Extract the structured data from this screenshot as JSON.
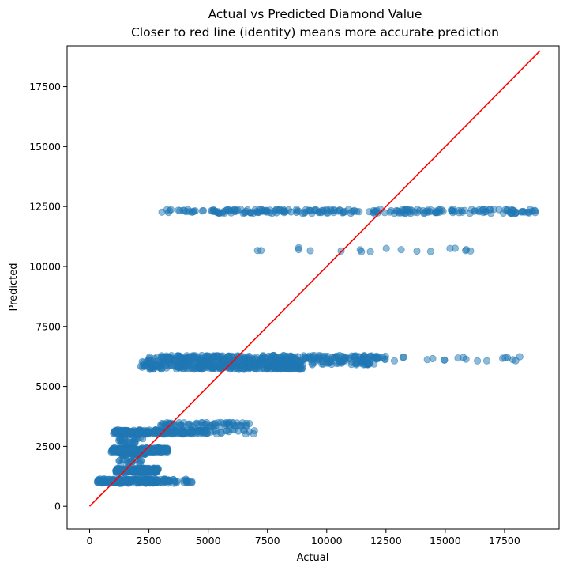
{
  "chart_data": {
    "type": "scatter",
    "title": "Actual vs Predicted Diamond Value",
    "subtitle": "Closer to red line (identity) means more accurate prediction",
    "xlabel": "Actual",
    "ylabel": "Predicted",
    "xlim": [
      -950,
      19800
    ],
    "ylim": [
      -950,
      19200
    ],
    "x_ticks": [
      0,
      2500,
      5000,
      7500,
      10000,
      12500,
      15000,
      17500
    ],
    "y_ticks": [
      0,
      2500,
      5000,
      7500,
      10000,
      12500,
      15000,
      17500
    ],
    "grid": false,
    "point_color": "#1f77b4",
    "point_alpha": 0.5,
    "identity_line": {
      "color": "#ff0000",
      "from": [
        0,
        0
      ],
      "to": [
        19000,
        19000
      ]
    },
    "clusters": [
      {
        "predicted": 1050,
        "actual_range": [
          300,
          3400
        ],
        "density": "dense"
      },
      {
        "predicted": 1050,
        "actual_range": [
          3400,
          4350
        ],
        "density": "sparse"
      },
      {
        "predicted": 1500,
        "actual_range": [
          1100,
          2900
        ],
        "density": "dense"
      },
      {
        "predicted": 1850,
        "actual_range": [
          1200,
          2200
        ],
        "density": "sparse"
      },
      {
        "predicted": 2200,
        "actual_range": [
          1300,
          2400
        ],
        "density": "medium"
      },
      {
        "predicted": 2350,
        "actual_range": [
          900,
          3300
        ],
        "density": "dense"
      },
      {
        "predicted": 2700,
        "actual_range": [
          1200,
          2000
        ],
        "density": "sparse"
      },
      {
        "predicted": 2900,
        "actual_range": [
          1100,
          2300
        ],
        "density": "sparse"
      },
      {
        "predicted": 3100,
        "actual_range": [
          1000,
          5000
        ],
        "density": "dense"
      },
      {
        "predicted": 3100,
        "actual_range": [
          5000,
          7000
        ],
        "density": "sparse"
      },
      {
        "predicted": 3400,
        "actual_range": [
          3000,
          6800
        ],
        "density": "medium"
      },
      {
        "predicted": 5800,
        "actual_range": [
          2100,
          9000
        ],
        "density": "dense"
      },
      {
        "predicted": 6000,
        "actual_range": [
          2200,
          12000
        ],
        "density": "dense"
      },
      {
        "predicted": 6200,
        "actual_range": [
          2500,
          12500
        ],
        "density": "dense"
      },
      {
        "predicted": 6150,
        "actual_range": [
          12500,
          18700
        ],
        "density": "sparse"
      },
      {
        "predicted": 10700,
        "actual_range": [
          6400,
          16100
        ],
        "density": "sparse"
      },
      {
        "predicted": 12300,
        "actual_range": [
          3000,
          5000
        ],
        "density": "sparse"
      },
      {
        "predicted": 12300,
        "actual_range": [
          5100,
          18900
        ],
        "density": "dense"
      }
    ]
  }
}
